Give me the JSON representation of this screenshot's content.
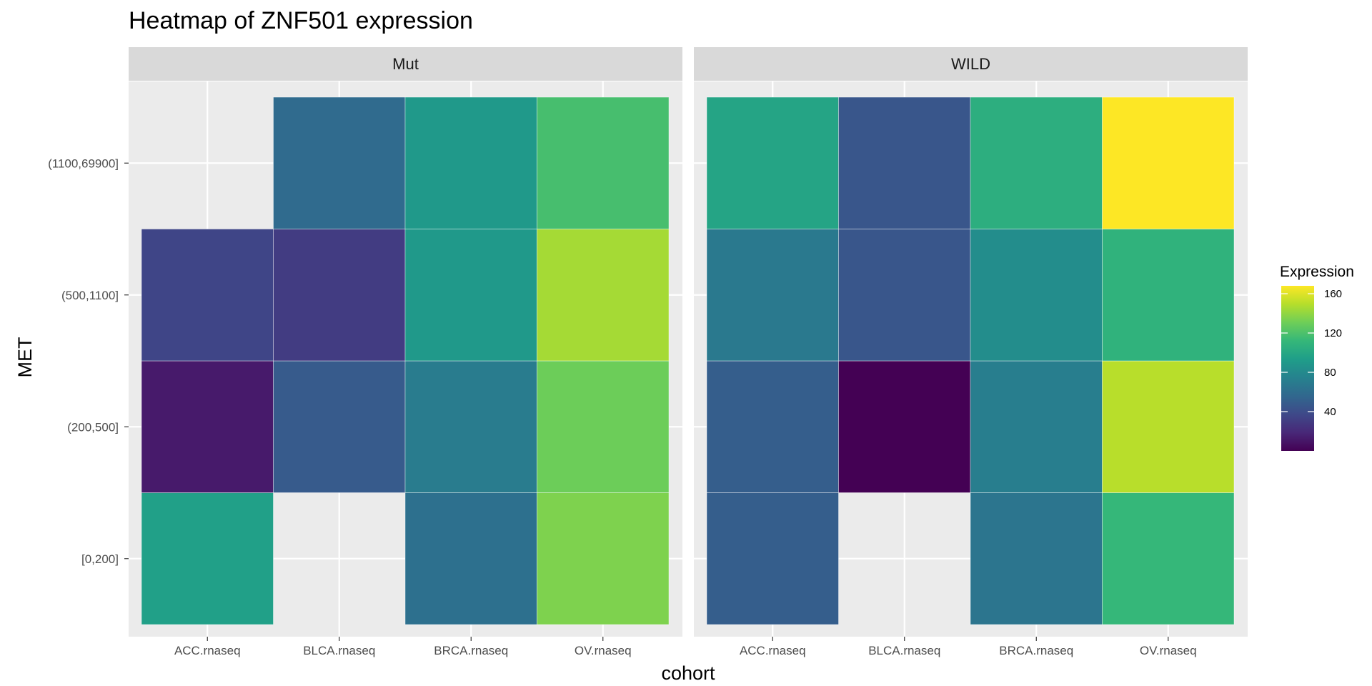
{
  "chart_data": {
    "type": "heatmap",
    "title": "Heatmap of ZNF501 expression",
    "xlabel": "cohort",
    "ylabel": "MET",
    "facets": [
      "Mut",
      "WILD"
    ],
    "x_categories": [
      "ACC.rnaseq",
      "BLCA.rnaseq",
      "BRCA.rnaseq",
      "OV.rnaseq"
    ],
    "y_categories": [
      "[0,200]",
      "(200,500]",
      "(500,1100]",
      "(1100,69900]"
    ],
    "values": {
      "Mut": [
        [
          95,
          null,
          62,
          135
        ],
        [
          12,
          48,
          70,
          130
        ],
        [
          35,
          30,
          90,
          145
        ],
        [
          null,
          58,
          90,
          118
        ]
      ],
      "WILD": [
        [
          50,
          null,
          65,
          112
        ],
        [
          50,
          0,
          72,
          150
        ],
        [
          68,
          45,
          82,
          108
        ],
        [
          98,
          45,
          105,
          168
        ]
      ]
    },
    "legend": {
      "title": "Expression",
      "position": "right",
      "ticks": [
        40,
        80,
        120,
        160
      ],
      "range": [
        0,
        168
      ],
      "palette": "viridis"
    },
    "grid": true
  }
}
